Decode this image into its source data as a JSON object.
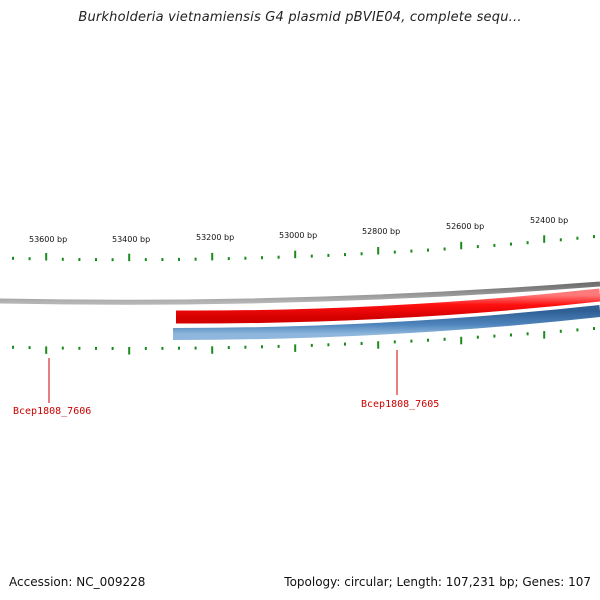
{
  "title": "Burkholderia vietnamiensis G4 plasmid pBVIE04, complete sequ...",
  "ticks": [
    "53600 bp",
    "53400 bp",
    "53200 bp",
    "53000 bp",
    "52800 bp",
    "52600 bp",
    "52400 bp"
  ],
  "genes": [
    "Bcep1808_7606",
    "Bcep1808_7605"
  ],
  "footer": {
    "accession": "Accession: NC_009228",
    "summary": "Topology: circular; Length: 107,231 bp; Genes: 107"
  },
  "colors": {
    "backbone": "#8a8a8a",
    "forward_strand": "#ff1a1a",
    "reverse_selected": "#0a1f8f",
    "reverse_strand": "#4a82b8",
    "tick": "#1a8a1a",
    "gene_label": "#cc0000"
  }
}
